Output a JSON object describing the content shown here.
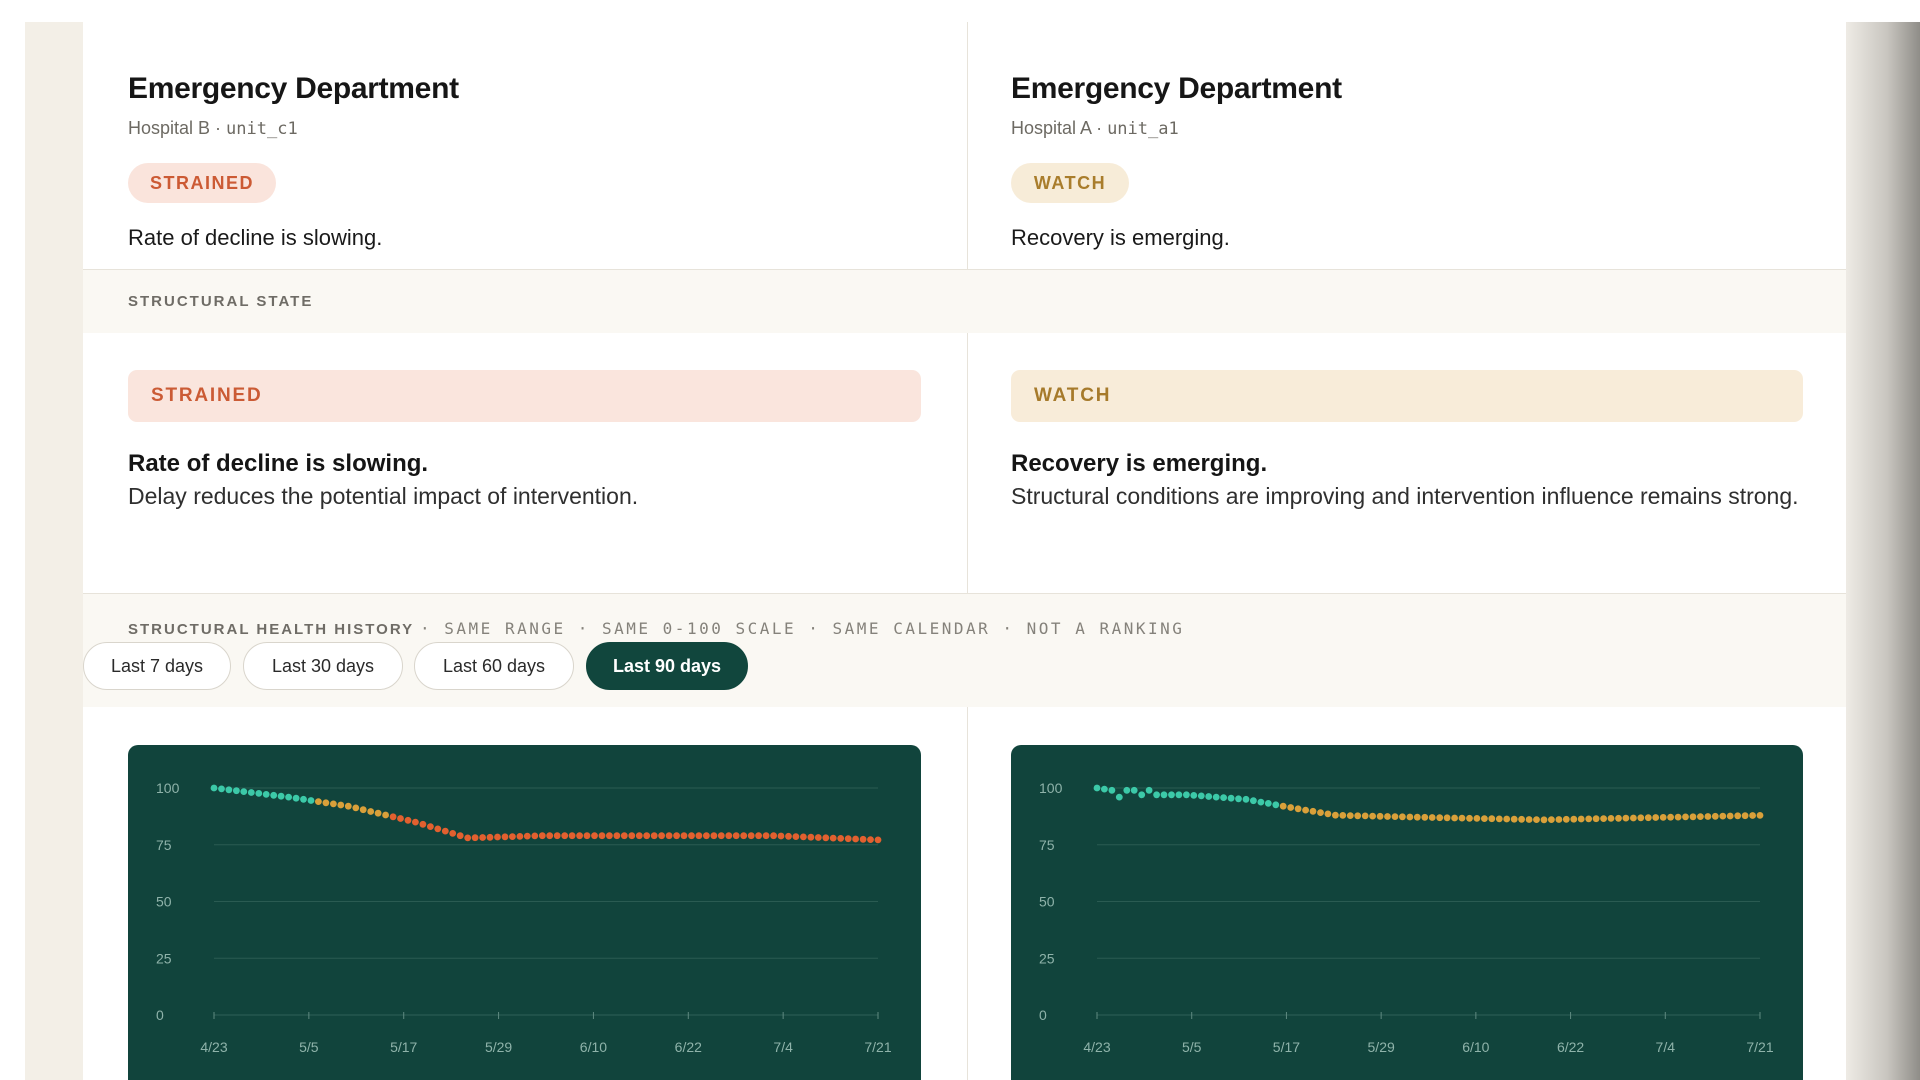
{
  "units": [
    {
      "name": "Emergency Department",
      "hospital": "Hospital B",
      "unit_id": "unit_c1",
      "badge": "STRAINED",
      "summary": "Rate of decline is slowing.",
      "state_label": "STRAINED",
      "state_title": "Rate of decline is slowing.",
      "state_desc": "Delay reduces the potential impact of intervention."
    },
    {
      "name": "Emergency Department",
      "hospital": "Hospital A",
      "unit_id": "unit_a1",
      "badge": "WATCH",
      "summary": "Recovery is emerging.",
      "state_label": "WATCH",
      "state_title": "Recovery is emerging.",
      "state_desc": "Structural conditions are improving and intervention influence remains strong."
    }
  ],
  "sections": {
    "structural_state": "STRUCTURAL STATE",
    "history": "STRUCTURAL HEALTH HISTORY",
    "history_note": "· SAME RANGE · SAME 0-100 SCALE · SAME CALENDAR · NOT A RANKING"
  },
  "range_buttons": [
    {
      "label": "Last 7 days",
      "active": false
    },
    {
      "label": "Last 30 days",
      "active": false
    },
    {
      "label": "Last 60 days",
      "active": false
    },
    {
      "label": "Last 90 days",
      "active": true
    }
  ],
  "colors": {
    "chart_bg": "#11443c",
    "good": "#3cc9a8",
    "watch": "#d9a03a",
    "strained": "#e2602f"
  },
  "chart_data": [
    {
      "type": "scatter",
      "title": "",
      "xlabel": "",
      "ylabel": "",
      "ylim": [
        0,
        100
      ],
      "yticks": [
        0,
        25,
        50,
        75,
        100
      ],
      "xticks": [
        "4/23",
        "5/5",
        "5/17",
        "5/29",
        "6/10",
        "6/22",
        "7/4",
        "7/21"
      ],
      "x_start": "2025-04-23",
      "x_end": "2025-07-21",
      "grid": true,
      "series": [
        {
          "keyframes": [
            [
              0,
              100
            ],
            [
              10,
              96
            ],
            [
              18,
              92
            ],
            [
              27,
              85
            ],
            [
              34,
              78
            ],
            [
              44,
              79
            ],
            [
              62,
              79
            ],
            [
              75,
              79
            ],
            [
              90,
              77
            ]
          ]
        }
      ],
      "color_bands": [
        {
          "from": 0,
          "to": 13,
          "color": "good"
        },
        {
          "from": 14,
          "to": 23,
          "color": "watch"
        },
        {
          "from": 24,
          "to": 90,
          "color": "strained"
        }
      ]
    },
    {
      "type": "scatter",
      "title": "",
      "xlabel": "",
      "ylabel": "",
      "ylim": [
        0,
        100
      ],
      "yticks": [
        0,
        25,
        50,
        75,
        100
      ],
      "xticks": [
        "4/23",
        "5/5",
        "5/17",
        "5/29",
        "6/10",
        "6/22",
        "7/4",
        "7/21"
      ],
      "x_start": "2025-04-23",
      "x_end": "2025-07-21",
      "grid": true,
      "series": [
        {
          "keyframes": [
            [
              0,
              100
            ],
            [
              2,
              99
            ],
            [
              3,
              96
            ],
            [
              4,
              99
            ],
            [
              5,
              99
            ],
            [
              6,
              97
            ],
            [
              7,
              99
            ],
            [
              8,
              97
            ],
            [
              12,
              97
            ],
            [
              20,
              95
            ],
            [
              25,
              92
            ],
            [
              32,
              88
            ],
            [
              45,
              87
            ],
            [
              60,
              86
            ],
            [
              75,
              87
            ],
            [
              90,
              88
            ]
          ]
        }
      ],
      "color_bands": [
        {
          "from": 0,
          "to": 24,
          "color": "good"
        },
        {
          "from": 25,
          "to": 90,
          "color": "watch"
        }
      ]
    }
  ]
}
